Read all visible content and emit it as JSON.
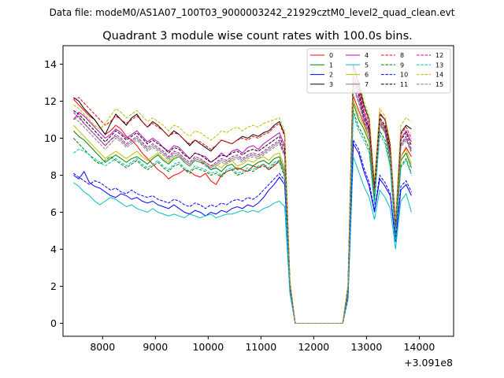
{
  "chart_data": {
    "type": "line",
    "suptitle": "Data file: modeM0/AS1A07_100T03_9000003242_21929cztM0_level2_quad_clean.evt",
    "title": "Quadrant 3 module wise count rates with 100.0s bins.",
    "xlabel": "",
    "ylabel": "",
    "x_offset_label": "+3.091e8",
    "xlim": [
      7250,
      14650
    ],
    "ylim": [
      -0.7,
      15.0
    ],
    "x_ticks": [
      8000,
      9000,
      10000,
      11000,
      12000,
      13000,
      14000
    ],
    "y_ticks": [
      0,
      2,
      4,
      6,
      8,
      10,
      12,
      14
    ],
    "legend_position": "top-right",
    "x_start": 7450,
    "x_step": 100,
    "series": [
      {
        "name": "0",
        "color": "#ff0000",
        "style": "solid",
        "values": [
          12.1,
          11.8,
          11.5,
          11.2,
          11.0,
          10.6,
          10.2,
          10.4,
          10.7,
          10.5,
          10.1,
          9.9,
          9.6,
          9.2,
          8.9,
          8.6,
          8.3,
          8.1,
          7.8,
          8.0,
          8.1,
          8.3,
          8.2,
          8.0,
          7.9,
          8.1,
          7.7,
          7.5,
          8.0,
          8.2,
          8.3,
          8.4,
          8.3,
          8.2,
          8.5,
          8.4,
          8.6,
          8.3,
          8.5,
          8.8,
          8.0,
          2.0,
          0.0,
          0.0,
          0.0,
          0.0,
          0.0,
          0.0,
          0.0,
          0.0,
          0.0,
          0.0,
          1.5,
          12.3,
          11.5,
          10.8,
          10.0,
          7.0,
          11.0,
          10.5,
          9.0,
          5.0,
          9.0,
          9.5,
          9.0
        ]
      },
      {
        "name": "1",
        "color": "#008000",
        "style": "solid",
        "values": [
          10.4,
          10.1,
          9.9,
          9.6,
          9.3,
          9.0,
          8.7,
          8.9,
          9.1,
          8.9,
          8.7,
          8.9,
          9.0,
          8.8,
          8.6,
          8.9,
          9.1,
          8.8,
          8.6,
          8.9,
          9.0,
          8.7,
          8.5,
          8.8,
          8.7,
          8.6,
          8.3,
          8.4,
          8.2,
          8.5,
          8.6,
          8.3,
          8.4,
          8.6,
          8.5,
          8.7,
          8.8,
          8.6,
          8.9,
          9.0,
          8.2,
          1.8,
          0.0,
          0.0,
          0.0,
          0.0,
          0.0,
          0.0,
          0.0,
          0.0,
          0.0,
          0.0,
          1.5,
          11.9,
          11.0,
          10.5,
          9.8,
          6.8,
          10.8,
          10.3,
          8.8,
          4.8,
          8.8,
          9.2,
          8.4
        ]
      },
      {
        "name": "2",
        "color": "#0000ff",
        "style": "solid",
        "values": [
          8.0,
          7.8,
          8.2,
          7.6,
          7.4,
          7.3,
          7.1,
          6.9,
          6.8,
          7.0,
          6.9,
          6.7,
          6.8,
          6.6,
          6.5,
          6.6,
          6.4,
          6.3,
          6.2,
          6.4,
          6.2,
          6.0,
          5.9,
          6.1,
          6.0,
          5.8,
          6.0,
          5.9,
          6.1,
          6.0,
          6.2,
          6.3,
          6.2,
          6.4,
          6.3,
          6.5,
          6.8,
          7.2,
          7.5,
          7.9,
          7.5,
          1.8,
          0.0,
          0.0,
          0.0,
          0.0,
          0.0,
          0.0,
          0.0,
          0.0,
          0.0,
          0.0,
          1.4,
          9.7,
          9.2,
          8.2,
          7.4,
          6.0,
          7.8,
          7.4,
          6.9,
          4.4,
          7.2,
          7.5,
          6.9
        ]
      },
      {
        "name": "3",
        "color": "#000000",
        "style": "solid",
        "values": [
          12.2,
          12.0,
          11.6,
          11.3,
          11.0,
          10.6,
          10.2,
          10.8,
          11.3,
          11.0,
          10.7,
          11.1,
          11.3,
          10.9,
          10.6,
          10.9,
          10.7,
          10.4,
          10.1,
          10.4,
          10.2,
          9.9,
          9.6,
          9.9,
          9.7,
          9.5,
          9.3,
          9.6,
          9.9,
          9.8,
          9.7,
          9.9,
          10.1,
          10.0,
          10.2,
          10.1,
          10.3,
          10.4,
          10.7,
          10.9,
          10.2,
          2.2,
          0.0,
          0.0,
          0.0,
          0.0,
          0.0,
          0.0,
          0.0,
          0.0,
          0.0,
          0.0,
          2.0,
          14.0,
          13.0,
          11.8,
          11.0,
          7.5,
          11.3,
          11.0,
          9.6,
          5.4,
          10.3,
          10.7,
          10.5
        ]
      },
      {
        "name": "4",
        "color": "#bf00bf",
        "style": "solid",
        "values": [
          11.0,
          11.4,
          11.2,
          10.9,
          10.6,
          10.3,
          10.0,
          10.2,
          10.5,
          10.3,
          10.0,
          10.2,
          10.4,
          10.1,
          9.8,
          10.0,
          9.8,
          9.5,
          9.3,
          9.6,
          9.5,
          9.2,
          8.9,
          9.2,
          9.1,
          9.0,
          8.7,
          8.9,
          9.2,
          9.0,
          9.3,
          9.4,
          9.2,
          9.5,
          9.6,
          9.4,
          9.7,
          9.9,
          10.1,
          10.3,
          9.6,
          2.1,
          0.0,
          0.0,
          0.0,
          0.0,
          0.0,
          0.0,
          0.0,
          0.0,
          0.0,
          0.0,
          1.8,
          13.4,
          12.6,
          11.4,
          10.6,
          7.2,
          11.0,
          10.6,
          9.3,
          5.2,
          10.0,
          10.4,
          9.8
        ]
      },
      {
        "name": "5",
        "color": "#00bfbf",
        "style": "solid",
        "values": [
          7.6,
          7.4,
          7.1,
          6.9,
          6.6,
          6.4,
          6.6,
          6.8,
          6.7,
          6.5,
          6.3,
          6.4,
          6.2,
          6.1,
          6.0,
          6.2,
          6.0,
          5.9,
          5.8,
          5.9,
          5.8,
          5.7,
          5.9,
          5.8,
          5.7,
          5.8,
          5.9,
          5.7,
          5.8,
          5.9,
          5.9,
          6.0,
          6.1,
          6.0,
          6.1,
          6.0,
          6.2,
          6.3,
          6.5,
          6.6,
          6.3,
          1.6,
          0.0,
          0.0,
          0.0,
          0.0,
          0.0,
          0.0,
          0.0,
          0.0,
          0.0,
          0.0,
          1.3,
          9.0,
          8.2,
          7.4,
          6.8,
          5.6,
          7.2,
          6.8,
          6.2,
          4.0,
          6.6,
          7.0,
          6.0
        ]
      },
      {
        "name": "6",
        "color": "#bfbf00",
        "style": "solid",
        "values": [
          10.7,
          10.4,
          10.1,
          9.8,
          9.5,
          9.2,
          8.9,
          9.1,
          9.3,
          9.1,
          8.9,
          9.1,
          9.3,
          9.0,
          8.8,
          9.0,
          9.2,
          8.9,
          8.7,
          9.0,
          9.1,
          8.8,
          8.6,
          8.9,
          8.8,
          8.7,
          8.5,
          8.6,
          8.4,
          8.7,
          8.8,
          8.5,
          8.6,
          8.8,
          8.7,
          8.9,
          9.0,
          8.8,
          9.1,
          9.2,
          8.4,
          1.9,
          0.0,
          0.0,
          0.0,
          0.0,
          0.0,
          0.0,
          0.0,
          0.0,
          0.0,
          0.0,
          1.6,
          12.1,
          11.2,
          10.7,
          10.0,
          7.0,
          11.0,
          10.5,
          9.0,
          5.0,
          9.0,
          9.4,
          8.6
        ]
      },
      {
        "name": "7",
        "color": "#808080",
        "style": "solid",
        "values": [
          11.0,
          11.2,
          10.8,
          10.5,
          10.2,
          9.9,
          9.6,
          9.9,
          10.1,
          9.9,
          9.6,
          9.8,
          10.0,
          9.7,
          9.4,
          9.6,
          9.4,
          9.2,
          8.9,
          9.2,
          9.1,
          8.8,
          8.6,
          8.9,
          8.8,
          8.6,
          8.4,
          8.6,
          8.8,
          8.7,
          8.9,
          9.0,
          8.8,
          9.0,
          9.1,
          9.0,
          9.2,
          9.4,
          9.6,
          9.8,
          9.1,
          2.0,
          0.0,
          0.0,
          0.0,
          0.0,
          0.0,
          0.0,
          0.0,
          0.0,
          0.0,
          0.0,
          1.8,
          12.8,
          12.0,
          11.0,
          10.3,
          7.1,
          10.8,
          10.4,
          9.1,
          5.1,
          9.6,
          10.0,
          9.3
        ]
      },
      {
        "name": "8",
        "color": "#ff0000",
        "style": "dashed",
        "values": [
          12.1,
          12.2,
          11.9,
          11.6,
          11.3,
          11.0,
          10.7,
          10.9,
          11.2,
          11.0,
          10.8,
          11.0,
          11.2,
          10.9,
          10.6,
          10.8,
          10.6,
          10.4,
          10.1,
          10.3,
          10.2,
          9.9,
          9.7,
          9.9,
          9.8,
          9.6,
          9.4,
          9.6,
          9.9,
          9.8,
          9.7,
          9.9,
          10.0,
          9.9,
          10.1,
          10.0,
          10.2,
          10.3,
          10.6,
          10.8,
          10.1,
          2.2,
          0.0,
          0.0,
          0.0,
          0.0,
          0.0,
          0.0,
          0.0,
          0.0,
          0.0,
          0.0,
          1.9,
          13.8,
          12.8,
          11.6,
          10.8,
          7.4,
          11.4,
          11.0,
          9.5,
          5.3,
          10.2,
          10.6,
          10.0
        ]
      },
      {
        "name": "9",
        "color": "#008000",
        "style": "dashed",
        "values": [
          10.0,
          9.7,
          9.4,
          9.1,
          8.8,
          8.6,
          8.8,
          9.0,
          8.8,
          8.6,
          8.4,
          8.6,
          8.8,
          8.5,
          8.3,
          8.5,
          8.7,
          8.4,
          8.2,
          8.5,
          8.6,
          8.3,
          8.1,
          8.4,
          8.3,
          8.2,
          8.0,
          8.1,
          7.9,
          8.2,
          8.3,
          8.0,
          8.1,
          8.3,
          8.2,
          8.4,
          8.5,
          8.3,
          8.6,
          8.7,
          7.9,
          1.7,
          0.0,
          0.0,
          0.0,
          0.0,
          0.0,
          0.0,
          0.0,
          0.0,
          0.0,
          0.0,
          1.4,
          11.5,
          10.6,
          10.1,
          9.4,
          6.5,
          10.4,
          9.9,
          8.5,
          4.6,
          8.5,
          8.9,
          8.1
        ]
      },
      {
        "name": "10",
        "color": "#0000ff",
        "style": "dashed",
        "values": [
          8.1,
          7.9,
          7.7,
          7.5,
          7.7,
          7.6,
          7.4,
          7.2,
          7.3,
          7.1,
          7.0,
          7.2,
          7.0,
          6.9,
          6.8,
          6.9,
          6.7,
          6.6,
          6.5,
          6.7,
          6.6,
          6.4,
          6.3,
          6.5,
          6.4,
          6.2,
          6.4,
          6.3,
          6.5,
          6.4,
          6.6,
          6.7,
          6.6,
          6.8,
          6.7,
          6.9,
          7.2,
          7.5,
          7.8,
          8.1,
          7.7,
          1.8,
          0.0,
          0.0,
          0.0,
          0.0,
          0.0,
          0.0,
          0.0,
          0.0,
          0.0,
          0.0,
          1.4,
          9.9,
          9.4,
          8.4,
          7.6,
          6.1,
          8.0,
          7.6,
          7.0,
          4.5,
          7.4,
          7.7,
          7.1
        ]
      },
      {
        "name": "11",
        "color": "#000000",
        "style": "dashed",
        "values": [
          11.5,
          11.3,
          11.0,
          10.7,
          10.4,
          10.1,
          9.8,
          10.1,
          10.4,
          10.2,
          9.9,
          10.1,
          10.3,
          10.0,
          9.7,
          9.9,
          9.7,
          9.5,
          9.2,
          9.5,
          9.4,
          9.1,
          8.9,
          9.2,
          9.1,
          8.9,
          8.7,
          8.9,
          9.1,
          9.0,
          9.2,
          9.3,
          9.1,
          9.3,
          9.4,
          9.3,
          9.5,
          9.7,
          9.9,
          10.1,
          9.4,
          2.1,
          0.0,
          0.0,
          0.0,
          0.0,
          0.0,
          0.0,
          0.0,
          0.0,
          0.0,
          0.0,
          1.9,
          13.2,
          12.4,
          11.2,
          10.5,
          7.2,
          11.1,
          10.7,
          9.3,
          5.2,
          9.9,
          10.3,
          9.6
        ]
      },
      {
        "name": "12",
        "color": "#bf00bf",
        "style": "dashed",
        "values": [
          11.4,
          11.1,
          10.8,
          10.5,
          10.2,
          9.9,
          9.6,
          9.9,
          10.2,
          10.0,
          9.7,
          9.9,
          10.1,
          9.8,
          9.5,
          9.7,
          9.5,
          9.3,
          9.0,
          9.3,
          9.2,
          8.9,
          8.7,
          9.0,
          8.9,
          8.7,
          8.5,
          8.7,
          8.9,
          8.8,
          9.0,
          9.1,
          8.9,
          9.1,
          9.2,
          9.1,
          9.3,
          9.5,
          9.7,
          9.9,
          9.2,
          2.0,
          0.0,
          0.0,
          0.0,
          0.0,
          0.0,
          0.0,
          0.0,
          0.0,
          0.0,
          0.0,
          1.8,
          13.0,
          12.2,
          11.1,
          10.4,
          7.1,
          10.9,
          10.5,
          9.2,
          5.1,
          9.7,
          10.1,
          9.4
        ]
      },
      {
        "name": "13",
        "color": "#00bfbf",
        "style": "dashed",
        "values": [
          9.2,
          9.4,
          9.3,
          9.1,
          8.9,
          8.7,
          8.5,
          8.7,
          8.9,
          8.7,
          8.5,
          8.7,
          8.9,
          8.6,
          8.4,
          8.6,
          8.8,
          8.5,
          8.3,
          8.6,
          8.7,
          8.4,
          8.2,
          8.5,
          8.4,
          8.3,
          8.1,
          8.2,
          8.0,
          8.3,
          8.4,
          8.1,
          8.2,
          8.4,
          8.3,
          8.5,
          8.6,
          8.4,
          8.7,
          8.8,
          8.0,
          1.7,
          0.0,
          0.0,
          0.0,
          0.0,
          0.0,
          0.0,
          0.0,
          0.0,
          0.0,
          0.0,
          1.4,
          11.3,
          10.4,
          9.9,
          9.2,
          6.4,
          10.2,
          9.7,
          8.4,
          4.5,
          8.4,
          8.8,
          8.0
        ]
      },
      {
        "name": "14",
        "color": "#bfbf00",
        "style": "dashed",
        "values": [
          11.8,
          11.6,
          11.3,
          11.0,
          10.7,
          10.5,
          10.8,
          11.2,
          11.6,
          11.4,
          11.1,
          11.3,
          11.5,
          11.2,
          10.9,
          11.1,
          10.9,
          10.7,
          10.4,
          10.7,
          10.6,
          10.3,
          10.1,
          10.4,
          10.3,
          10.1,
          9.9,
          10.1,
          10.4,
          10.3,
          10.5,
          10.6,
          10.4,
          10.6,
          10.7,
          10.6,
          10.8,
          10.9,
          11.0,
          11.1,
          10.4,
          2.3,
          0.0,
          0.0,
          0.0,
          0.0,
          0.0,
          0.0,
          0.0,
          0.0,
          0.0,
          0.0,
          2.1,
          13.7,
          13.1,
          12.0,
          11.2,
          7.7,
          11.6,
          11.2,
          9.8,
          5.6,
          10.7,
          11.1,
          10.9
        ]
      },
      {
        "name": "15",
        "color": "#808080",
        "style": "dashed",
        "values": [
          11.1,
          10.9,
          10.6,
          10.3,
          10.0,
          9.7,
          9.4,
          9.7,
          10.0,
          9.8,
          9.5,
          9.7,
          9.9,
          9.6,
          9.3,
          9.5,
          9.3,
          9.1,
          8.8,
          9.1,
          9.0,
          8.7,
          8.5,
          8.8,
          8.7,
          8.5,
          8.3,
          8.5,
          8.7,
          8.6,
          8.8,
          8.9,
          8.7,
          8.9,
          9.0,
          8.9,
          9.1,
          9.3,
          9.5,
          9.7,
          9.0,
          2.0,
          0.0,
          0.0,
          0.0,
          0.0,
          0.0,
          0.0,
          0.0,
          0.0,
          0.0,
          0.0,
          1.8,
          12.7,
          11.9,
          10.9,
          10.2,
          7.0,
          10.7,
          10.3,
          9.0,
          5.0,
          9.5,
          9.9,
          9.2
        ]
      }
    ]
  }
}
